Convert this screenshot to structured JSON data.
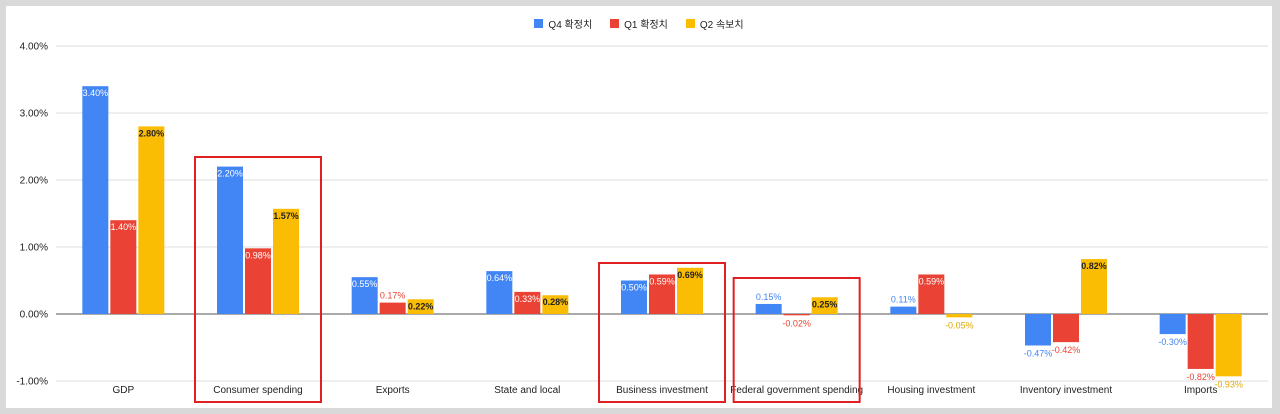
{
  "chart_data": {
    "type": "bar",
    "categories": [
      "GDP",
      "Consumer spending",
      "Exports",
      "State and local",
      "Business investment",
      "Federal government spending",
      "Housing investment",
      "Inventory investment",
      "Imports"
    ],
    "series": [
      {
        "name": "Q4 확정치",
        "color": "#4285f4",
        "values": [
          3.4,
          2.2,
          0.55,
          0.64,
          0.5,
          0.15,
          0.11,
          -0.47,
          -0.3
        ],
        "labels": [
          "3.40%",
          "2.20%",
          "0.55%",
          "0.64%",
          "0.50%",
          "0.15%",
          "0.11%",
          "-0.47%",
          "-0.30%"
        ]
      },
      {
        "name": "Q1 확정치",
        "color": "#ea4335",
        "values": [
          1.4,
          0.98,
          0.17,
          0.33,
          0.59,
          -0.02,
          0.59,
          -0.42,
          -0.82
        ],
        "labels": [
          "1.40%",
          "0.98%",
          "0.17%",
          "0.33%",
          "0.59%",
          "-0.02%",
          "0.59%",
          "-0.42%",
          "-0.82%"
        ]
      },
      {
        "name": "Q2 속보치",
        "color": "#fbbc04",
        "values": [
          2.8,
          1.57,
          0.22,
          0.28,
          0.69,
          0.25,
          -0.05,
          0.82,
          -0.93
        ],
        "labels": [
          "2.80%",
          "1.57%",
          "0.22%",
          "0.28%",
          "0.69%",
          "0.25%",
          "-0.05%",
          "0.82%",
          "-0.93%"
        ]
      }
    ],
    "y_ticks": [
      "4.00%",
      "3.00%",
      "2.00%",
      "1.00%",
      "0.00%",
      "-1.00%"
    ],
    "ylim": [
      -1,
      4
    ],
    "grid": true,
    "legend_position": "top-center",
    "highlighted_categories": [
      "Consumer spending",
      "Business investment",
      "Federal government spending"
    ],
    "highlight_color": "#e02020"
  }
}
